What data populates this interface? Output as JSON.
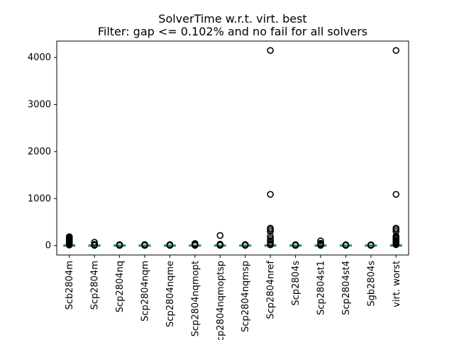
{
  "chart_data": {
    "type": "box",
    "title": "SolverTime w.r.t. virt. best",
    "subtitle": "Filter: gap <= 0.102% and no fail for all solvers",
    "xlabel": "",
    "ylabel": "",
    "ylim": [
      -200,
      4350
    ],
    "yticks": [
      0,
      1000,
      2000,
      3000,
      4000
    ],
    "grid": false,
    "colors": {
      "box": "#1f77b4",
      "median": "#2ca02c",
      "flier": "#000000"
    },
    "categories": [
      "Scb2804m",
      "Scp2804m",
      "Scp2804nq",
      "Scp2804nqm",
      "Scp2804nqme",
      "Scp2804nqmopt",
      "Scp2804nqmoptsp",
      "Scp2804nqmsp",
      "Scp2804nref",
      "Scp2804s",
      "Scp2804st1",
      "Scp2804st4",
      "Sgb2804s",
      "virt. worst"
    ],
    "boxes": [
      {
        "q1": 0,
        "median": 1,
        "q3": 3,
        "whisker_low": 0,
        "whisker_high": 7,
        "fliers": [
          12,
          20,
          30,
          40,
          55,
          70,
          85,
          100,
          115,
          130,
          150,
          170,
          190
        ]
      },
      {
        "q1": 0,
        "median": 0,
        "q3": 1,
        "whisker_low": 0,
        "whisker_high": 2,
        "fliers": [
          5,
          12,
          25,
          70
        ]
      },
      {
        "q1": 0,
        "median": 0,
        "q3": 1,
        "whisker_low": 0,
        "whisker_high": 2,
        "fliers": [
          4,
          8,
          14,
          20
        ]
      },
      {
        "q1": 0,
        "median": 0,
        "q3": 1,
        "whisker_low": 0,
        "whisker_high": 2,
        "fliers": [
          4,
          8,
          14,
          22
        ]
      },
      {
        "q1": 0,
        "median": 0,
        "q3": 1,
        "whisker_low": 0,
        "whisker_high": 2,
        "fliers": [
          4,
          8,
          14,
          20
        ]
      },
      {
        "q1": 0,
        "median": 0,
        "q3": 1,
        "whisker_low": 0,
        "whisker_high": 2,
        "fliers": [
          5,
          12,
          22,
          35,
          45
        ]
      },
      {
        "q1": 0,
        "median": 0,
        "q3": 1,
        "whisker_low": 0,
        "whisker_high": 2,
        "fliers": [
          6,
          12,
          20,
          30,
          215
        ]
      },
      {
        "q1": 0,
        "median": 0,
        "q3": 1,
        "whisker_low": 0,
        "whisker_high": 2,
        "fliers": [
          5,
          10,
          16,
          22
        ]
      },
      {
        "q1": 0,
        "median": 1,
        "q3": 3,
        "whisker_low": 0,
        "whisker_high": 7,
        "fliers": [
          15,
          40,
          70,
          110,
          150,
          200,
          300,
          340,
          370,
          1090,
          4150
        ]
      },
      {
        "q1": 0,
        "median": 0,
        "q3": 1,
        "whisker_low": 0,
        "whisker_high": 2,
        "fliers": [
          4,
          8,
          14,
          20
        ]
      },
      {
        "q1": 0,
        "median": 0,
        "q3": 1,
        "whisker_low": 0,
        "whisker_high": 2,
        "fliers": [
          5,
          15,
          30,
          50,
          100
        ]
      },
      {
        "q1": 0,
        "median": 0,
        "q3": 1,
        "whisker_low": 0,
        "whisker_high": 2,
        "fliers": [
          4,
          8,
          12,
          18
        ]
      },
      {
        "q1": 0,
        "median": 0,
        "q3": 1,
        "whisker_low": 0,
        "whisker_high": 2,
        "fliers": [
          4,
          8,
          12,
          18
        ]
      },
      {
        "q1": 0,
        "median": 2,
        "q3": 6,
        "whisker_low": 0,
        "whisker_high": 14,
        "fliers": [
          20,
          35,
          50,
          70,
          90,
          110,
          140,
          160,
          180,
          200,
          300,
          340,
          370,
          1090,
          4150
        ]
      }
    ]
  }
}
